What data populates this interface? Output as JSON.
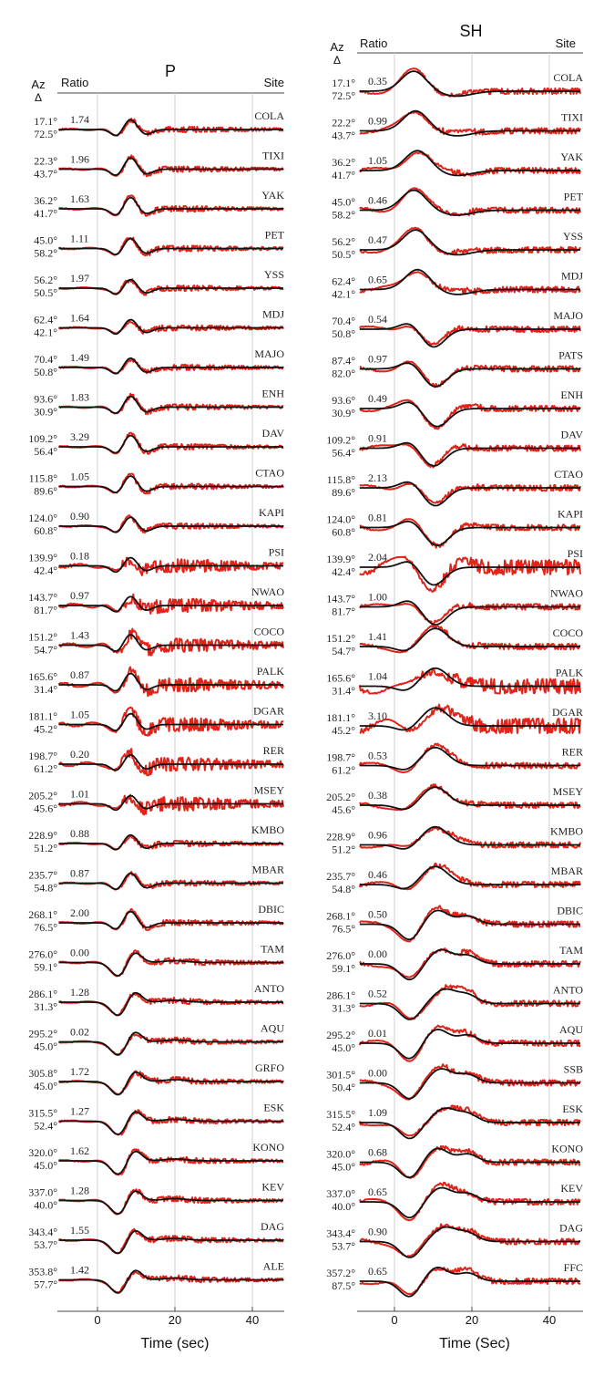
{
  "colors": {
    "observed": "#e2231a",
    "synthetic": "#111111",
    "grid": "#cfcfcf"
  },
  "chart_data": [
    {
      "type": "line",
      "title": "P",
      "xlabel": "Time (sec)",
      "xticks": [
        "0",
        "20",
        "40"
      ],
      "xlim": [
        -10,
        48
      ],
      "grid": true,
      "headers": {
        "az": "Az",
        "delta": "Δ",
        "ratio": "Ratio",
        "site": "Site"
      },
      "stations": [
        {
          "az": "17.1°",
          "delta": "72.5°",
          "ratio": "1.74",
          "site": "COLA"
        },
        {
          "az": "22.3°",
          "delta": "43.7°",
          "ratio": "1.96",
          "site": "TIXI"
        },
        {
          "az": "36.2°",
          "delta": "41.7°",
          "ratio": "1.63",
          "site": "YAK"
        },
        {
          "az": "45.0°",
          "delta": "58.2°",
          "ratio": "1.11",
          "site": "PET"
        },
        {
          "az": "56.2°",
          "delta": "50.5°",
          "ratio": "1.97",
          "site": "YSS"
        },
        {
          "az": "62.4°",
          "delta": "42.1°",
          "ratio": "1.64",
          "site": "MDJ"
        },
        {
          "az": "70.4°",
          "delta": "50.8°",
          "ratio": "1.49",
          "site": "MAJO"
        },
        {
          "az": "93.6°",
          "delta": "30.9°",
          "ratio": "1.83",
          "site": "ENH"
        },
        {
          "az": "109.2°",
          "delta": "56.4°",
          "ratio": "3.29",
          "site": "DAV"
        },
        {
          "az": "115.8°",
          "delta": "89.6°",
          "ratio": "1.05",
          "site": "CTAO"
        },
        {
          "az": "124.0°",
          "delta": "60.8°",
          "ratio": "0.90",
          "site": "KAPI"
        },
        {
          "az": "139.9°",
          "delta": "42.4°",
          "ratio": "0.18",
          "site": "PSI"
        },
        {
          "az": "143.7°",
          "delta": "81.7°",
          "ratio": "0.97",
          "site": "NWAO"
        },
        {
          "az": "151.2°",
          "delta": "54.7°",
          "ratio": "1.43",
          "site": "COCO"
        },
        {
          "az": "165.6°",
          "delta": "31.4°",
          "ratio": "0.87",
          "site": "PALK"
        },
        {
          "az": "181.1°",
          "delta": "45.2°",
          "ratio": "1.05",
          "site": "DGAR"
        },
        {
          "az": "198.7°",
          "delta": "61.2°",
          "ratio": "0.20",
          "site": "RER"
        },
        {
          "az": "205.2°",
          "delta": "45.6°",
          "ratio": "1.01",
          "site": "MSEY"
        },
        {
          "az": "228.9°",
          "delta": "51.2°",
          "ratio": "0.88",
          "site": "KMBO"
        },
        {
          "az": "235.7°",
          "delta": "54.8°",
          "ratio": "0.87",
          "site": "MBAR"
        },
        {
          "az": "268.1°",
          "delta": "76.5°",
          "ratio": "2.00",
          "site": "DBIC"
        },
        {
          "az": "276.0°",
          "delta": "59.1°",
          "ratio": "0.00",
          "site": "TAM"
        },
        {
          "az": "286.1°",
          "delta": "31.3°",
          "ratio": "1.28",
          "site": "ANTO"
        },
        {
          "az": "295.2°",
          "delta": "45.0°",
          "ratio": "0.02",
          "site": "AQU"
        },
        {
          "az": "305.8°",
          "delta": "45.0°",
          "ratio": "1.72",
          "site": "GRFO"
        },
        {
          "az": "315.5°",
          "delta": "52.4°",
          "ratio": "1.27",
          "site": "ESK"
        },
        {
          "az": "320.0°",
          "delta": "45.0°",
          "ratio": "1.62",
          "site": "KONO"
        },
        {
          "az": "337.0°",
          "delta": "40.0°",
          "ratio": "1.28",
          "site": "KEV"
        },
        {
          "az": "343.4°",
          "delta": "53.7°",
          "ratio": "1.55",
          "site": "DAG"
        },
        {
          "az": "353.8°",
          "delta": "57.7°",
          "ratio": "1.42",
          "site": "ALE"
        }
      ]
    },
    {
      "type": "line",
      "title": "SH",
      "xlabel": "Time (Sec)",
      "xticks": [
        "0",
        "20",
        "40"
      ],
      "xlim": [
        -9,
        48
      ],
      "grid": true,
      "headers": {
        "az": "Az",
        "delta": "Δ",
        "ratio": "Ratio",
        "site": "Site"
      },
      "stations": [
        {
          "az": "17.1°",
          "delta": "72.5°",
          "ratio": "0.35",
          "site": "COLA"
        },
        {
          "az": "22.2°",
          "delta": "43.7°",
          "ratio": "0.99",
          "site": "TIXI"
        },
        {
          "az": "36.2°",
          "delta": "41.7°",
          "ratio": "1.05",
          "site": "YAK"
        },
        {
          "az": "45.0°",
          "delta": "58.2°",
          "ratio": "0.46",
          "site": "PET"
        },
        {
          "az": "56.2°",
          "delta": "50.5°",
          "ratio": "0.47",
          "site": "YSS"
        },
        {
          "az": "62.4°",
          "delta": "42.1°",
          "ratio": "0.65",
          "site": "MDJ"
        },
        {
          "az": "70.4°",
          "delta": "50.8°",
          "ratio": "0.54",
          "site": "MAJO"
        },
        {
          "az": "87.4°",
          "delta": "82.0°",
          "ratio": "0.97",
          "site": "PATS"
        },
        {
          "az": "93.6°",
          "delta": "30.9°",
          "ratio": "0.49",
          "site": "ENH"
        },
        {
          "az": "109.2°",
          "delta": "56.4°",
          "ratio": "0.91",
          "site": "DAV"
        },
        {
          "az": "115.8°",
          "delta": "89.6°",
          "ratio": "2.13",
          "site": "CTAO"
        },
        {
          "az": "124.0°",
          "delta": "60.8°",
          "ratio": "0.81",
          "site": "KAPI"
        },
        {
          "az": "139.9°",
          "delta": "42.4°",
          "ratio": "2.04",
          "site": "PSI"
        },
        {
          "az": "143.7°",
          "delta": "81.7°",
          "ratio": "1.00",
          "site": "NWAO"
        },
        {
          "az": "151.2°",
          "delta": "54.7°",
          "ratio": "1.41",
          "site": "COCO"
        },
        {
          "az": "165.6°",
          "delta": "31.4°",
          "ratio": "1.04",
          "site": "PALK"
        },
        {
          "az": "181.1°",
          "delta": "45.2°",
          "ratio": "3.10",
          "site": "DGAR"
        },
        {
          "az": "198.7°",
          "delta": "61.2°",
          "ratio": "0.53",
          "site": "RER"
        },
        {
          "az": "205.2°",
          "delta": "45.6°",
          "ratio": "0.38",
          "site": "MSEY"
        },
        {
          "az": "228.9°",
          "delta": "51.2°",
          "ratio": "0.96",
          "site": "KMBO"
        },
        {
          "az": "235.7°",
          "delta": "54.8°",
          "ratio": "0.46",
          "site": "MBAR"
        },
        {
          "az": "268.1°",
          "delta": "76.5°",
          "ratio": "0.50",
          "site": "DBIC"
        },
        {
          "az": "276.0°",
          "delta": "59.1°",
          "ratio": "0.00",
          "site": "TAM"
        },
        {
          "az": "286.1°",
          "delta": "31.3°",
          "ratio": "0.52",
          "site": "ANTO"
        },
        {
          "az": "295.2°",
          "delta": "45.0°",
          "ratio": "0.01",
          "site": "AQU"
        },
        {
          "az": "301.5°",
          "delta": "50.4°",
          "ratio": "0.00",
          "site": "SSB"
        },
        {
          "az": "315.5°",
          "delta": "52.4°",
          "ratio": "1.09",
          "site": "ESK"
        },
        {
          "az": "320.0°",
          "delta": "45.0°",
          "ratio": "0.68",
          "site": "KONO"
        },
        {
          "az": "337.0°",
          "delta": "40.0°",
          "ratio": "0.65",
          "site": "KEV"
        },
        {
          "az": "343.4°",
          "delta": "53.7°",
          "ratio": "0.90",
          "site": "DAG"
        },
        {
          "az": "357.2°",
          "delta": "87.5°",
          "ratio": "0.65",
          "site": "FFC"
        }
      ]
    }
  ]
}
